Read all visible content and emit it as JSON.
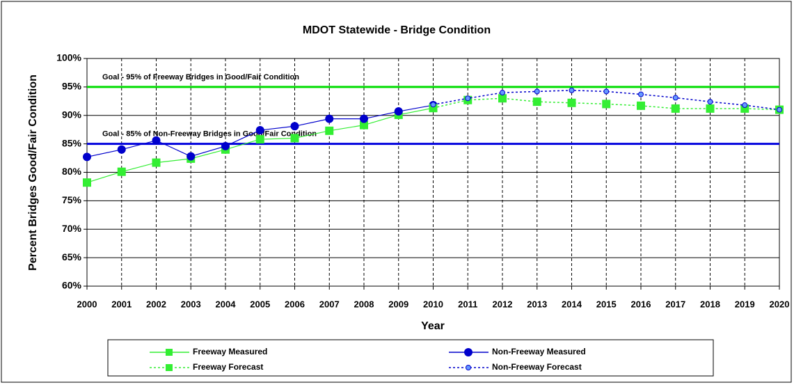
{
  "chart_data": {
    "type": "line",
    "title": "MDOT Statewide - Bridge Condition",
    "x_label": "Year",
    "y_label": "Percent Bridges Good/Fair Condition",
    "categories": [
      "2000",
      "2001",
      "2002",
      "2003",
      "2004",
      "2005",
      "2006",
      "2007",
      "2008",
      "2009",
      "2010",
      "2011",
      "2012",
      "2013",
      "2014",
      "2015",
      "2016",
      "2017",
      "2018",
      "2019",
      "2020"
    ],
    "series": [
      {
        "name": "Freeway Measured",
        "color": "#33ee33",
        "marker": "square",
        "dashed": false,
        "values": [
          78.2,
          80.1,
          81.7,
          82.4,
          84.0,
          85.8,
          86.0,
          87.3,
          88.3,
          90.1,
          91.3,
          null,
          null,
          null,
          null,
          null,
          null,
          null,
          null,
          null,
          null
        ]
      },
      {
        "name": "Non-Freeway Measured",
        "color": "#0000cc",
        "marker": "circle",
        "dashed": false,
        "values": [
          82.7,
          84.0,
          85.6,
          82.8,
          84.6,
          87.4,
          88.1,
          89.4,
          89.4,
          90.7,
          91.8,
          null,
          null,
          null,
          null,
          null,
          null,
          null,
          null,
          null,
          null
        ]
      },
      {
        "name": "Freeway Forecast",
        "color": "#33ee33",
        "marker": "square",
        "dashed": true,
        "values": [
          null,
          null,
          null,
          null,
          null,
          null,
          null,
          null,
          null,
          null,
          91.3,
          92.7,
          93.0,
          92.4,
          92.2,
          92.0,
          91.7,
          91.2,
          91.2,
          91.2,
          91.0
        ]
      },
      {
        "name": "Non-Freeway Forecast",
        "color": "#0000cc",
        "marker": "small-circle",
        "dashed": true,
        "values": [
          null,
          null,
          null,
          null,
          null,
          null,
          null,
          null,
          null,
          null,
          91.9,
          93.0,
          94.0,
          94.2,
          94.4,
          94.2,
          93.7,
          93.1,
          92.4,
          91.8,
          91.0
        ]
      }
    ],
    "reference_lines": [
      {
        "value": 95,
        "label": "Goal - 95% of Freeway Bridges in Good/Fair Condition",
        "color": "#00dd00"
      },
      {
        "value": 85,
        "label": "Goal - 85% of Non-Freeway Bridges in Good/Fair Condition",
        "color": "#0000dd"
      }
    ],
    "ylim": [
      60,
      100
    ],
    "yticks": [
      {
        "value": 60,
        "label": "60%"
      },
      {
        "value": 65,
        "label": "65%"
      },
      {
        "value": 70,
        "label": "70%"
      },
      {
        "value": 75,
        "label": "75%"
      },
      {
        "value": 80,
        "label": "80%"
      },
      {
        "value": 85,
        "label": "85%"
      },
      {
        "value": 90,
        "label": "90%"
      },
      {
        "value": 95,
        "label": "95%"
      },
      {
        "value": 100,
        "label": "100%"
      }
    ],
    "grid": true
  }
}
